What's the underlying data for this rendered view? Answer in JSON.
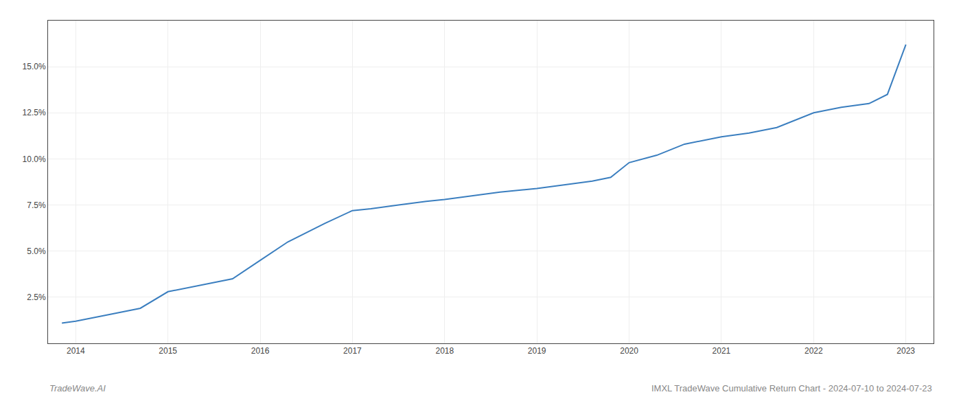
{
  "chart_data": {
    "type": "line",
    "title": "IMXL TradeWave Cumulative Return Chart - 2024-07-10 to 2024-07-23",
    "annotations": [
      "TradeWave.AI"
    ],
    "x": [
      2013.85,
      2014.0,
      2014.3,
      2014.7,
      2015.0,
      2015.3,
      2015.7,
      2016.0,
      2016.3,
      2016.5,
      2016.7,
      2017.0,
      2017.2,
      2017.5,
      2017.8,
      2018.0,
      2018.3,
      2018.6,
      2019.0,
      2019.3,
      2019.6,
      2019.8,
      2020.0,
      2020.3,
      2020.6,
      2021.0,
      2021.3,
      2021.6,
      2022.0,
      2022.3,
      2022.6,
      2022.8,
      2023.0
    ],
    "values": [
      1.1,
      1.2,
      1.5,
      1.9,
      2.8,
      3.1,
      3.5,
      4.5,
      5.5,
      6.0,
      6.5,
      7.2,
      7.3,
      7.5,
      7.7,
      7.8,
      8.0,
      8.2,
      8.4,
      8.6,
      8.8,
      9.0,
      9.8,
      10.2,
      10.8,
      11.2,
      11.4,
      11.7,
      12.5,
      12.8,
      13.0,
      13.5,
      16.2
    ],
    "color": "#3a7ebf",
    "xlim": [
      2013.7,
      2023.3
    ],
    "ylim": [
      0,
      17.5
    ],
    "xticks": [
      2014,
      2015,
      2016,
      2017,
      2018,
      2019,
      2020,
      2021,
      2022,
      2023
    ],
    "yticks": [
      {
        "value": 2.5,
        "label": "2.5%"
      },
      {
        "value": 5.0,
        "label": "5.0%"
      },
      {
        "value": 7.5,
        "label": "7.5%"
      },
      {
        "value": 10.0,
        "label": "10.0%"
      },
      {
        "value": 12.5,
        "label": "12.5%"
      },
      {
        "value": 15.0,
        "label": "15.0%"
      }
    ],
    "grid": true
  }
}
